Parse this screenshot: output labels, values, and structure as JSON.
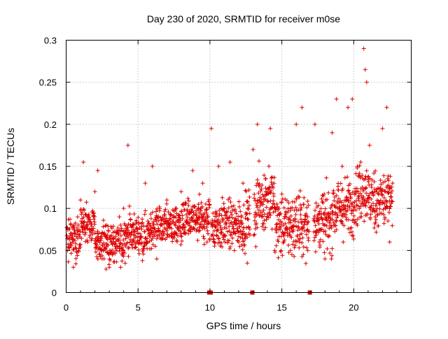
{
  "chart_data": {
    "type": "scatter",
    "title": "Day 230 of 2020, SRMTID for receiver m0se",
    "xlabel": "GPS time / hours",
    "ylabel": "SRMTID / TECUs",
    "xlim": [
      0,
      24
    ],
    "ylim": [
      0,
      0.3
    ],
    "xticks": [
      0,
      5,
      10,
      15,
      20
    ],
    "xtick_labels": [
      "0",
      "5",
      "10",
      "15",
      "20"
    ],
    "yticks": [
      0,
      0.05,
      0.1,
      0.15,
      0.2,
      0.25,
      0.3
    ],
    "ytick_labels": [
      "0",
      "0.05",
      "0.1",
      "0.15",
      "0.2",
      "0.25",
      "0.3"
    ],
    "grid": true,
    "marker": "plus",
    "point_color": "#dd0000",
    "zero_markers_x": [
      9.95,
      10.05,
      12.95,
      16.95
    ],
    "series": [
      {
        "name": "SRMTID",
        "sample_points": [
          [
            0.1,
            0.05
          ],
          [
            0.3,
            0.07
          ],
          [
            0.5,
            0.03
          ],
          [
            0.8,
            0.09
          ],
          [
            1.0,
            0.11
          ],
          [
            1.2,
            0.155
          ],
          [
            1.5,
            0.06
          ],
          [
            2.0,
            0.12
          ],
          [
            2.2,
            0.145
          ],
          [
            2.5,
            0.04
          ],
          [
            2.8,
            0.08
          ],
          [
            3.0,
            0.03
          ],
          [
            3.3,
            0.06
          ],
          [
            3.7,
            0.09
          ],
          [
            4.0,
            0.1
          ],
          [
            4.3,
            0.175
          ],
          [
            4.6,
            0.06
          ],
          [
            5.0,
            0.07
          ],
          [
            5.5,
            0.13
          ],
          [
            6.0,
            0.15
          ],
          [
            6.3,
            0.04
          ],
          [
            7.0,
            0.11
          ],
          [
            7.5,
            0.09
          ],
          [
            8.0,
            0.12
          ],
          [
            8.5,
            0.07
          ],
          [
            8.8,
            0.145
          ],
          [
            9.2,
            0.1
          ],
          [
            9.5,
            0.13
          ],
          [
            9.8,
            0.06
          ],
          [
            10.1,
            0.195
          ],
          [
            10.3,
            0.06
          ],
          [
            10.6,
            0.15
          ],
          [
            11.0,
            0.1
          ],
          [
            11.4,
            0.155
          ],
          [
            11.7,
            0.05
          ],
          [
            12.0,
            0.06
          ],
          [
            12.3,
            0.13
          ],
          [
            12.6,
            0.035
          ],
          [
            13.0,
            0.17
          ],
          [
            13.3,
            0.2
          ],
          [
            13.6,
            0.09
          ],
          [
            13.9,
            0.12
          ],
          [
            14.2,
            0.195
          ],
          [
            14.5,
            0.05
          ],
          [
            14.8,
            0.1
          ],
          [
            15.2,
            0.07
          ],
          [
            15.6,
            0.05
          ],
          [
            16.0,
            0.2
          ],
          [
            16.4,
            0.22
          ],
          [
            16.8,
            0.09
          ],
          [
            17.3,
            0.2
          ],
          [
            17.6,
            0.06
          ],
          [
            18.0,
            0.04
          ],
          [
            18.5,
            0.19
          ],
          [
            18.8,
            0.23
          ],
          [
            19.2,
            0.15
          ],
          [
            19.6,
            0.22
          ],
          [
            19.9,
            0.23
          ],
          [
            20.3,
            0.12
          ],
          [
            20.7,
            0.29
          ],
          [
            20.8,
            0.265
          ],
          [
            20.9,
            0.25
          ],
          [
            21.1,
            0.175
          ],
          [
            21.5,
            0.09
          ],
          [
            22.0,
            0.195
          ],
          [
            22.3,
            0.22
          ],
          [
            22.5,
            0.06
          ],
          [
            22.7,
            0.13
          ]
        ]
      }
    ]
  }
}
